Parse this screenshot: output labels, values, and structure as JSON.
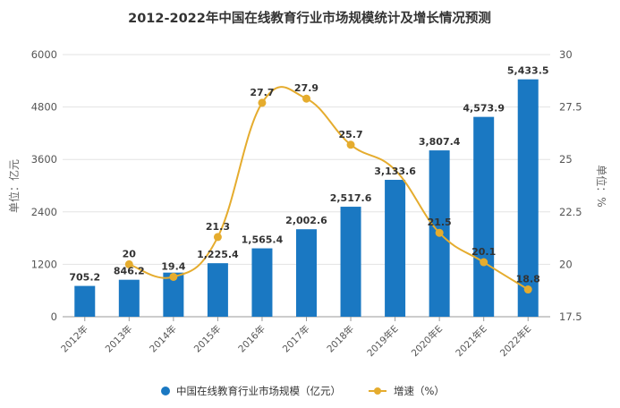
{
  "chart_data": {
    "type": "bar+line",
    "title": "2012-2022年中国在线教育行业市场规模统计及增长情况预测",
    "categories": [
      "2012年",
      "2013年",
      "2014年",
      "2015年",
      "2016年",
      "2017年",
      "2018年",
      "2019年E",
      "2020年E",
      "2021年E",
      "2022年E"
    ],
    "ylabel_left": "单位：亿元",
    "ylabel_right": "单位：%",
    "ylim_left": [
      0,
      6000
    ],
    "yticks_left": [
      "0",
      "1200",
      "2400",
      "3600",
      "4800",
      "6000"
    ],
    "ylim_right": [
      17.5,
      30
    ],
    "yticks_right": [
      "17.5",
      "20",
      "22.5",
      "25",
      "27.5",
      "30"
    ],
    "grid": true,
    "legend_position": "bottom",
    "series": [
      {
        "name": "中国在线教育行业市场规模（亿元）",
        "type": "bar",
        "axis": "left",
        "color": "#1a78c2",
        "values": [
          705.2,
          846.2,
          1010,
          1225.4,
          1565.4,
          2002.6,
          2517.6,
          3133.6,
          3807.4,
          4573.9,
          5433.5
        ],
        "labels": [
          "705.2",
          "846.2",
          "",
          "1,225.4",
          "1,565.4",
          "2,002.6",
          "2,517.6",
          "3,133.6",
          "3,807.4",
          "4,573.9",
          "5,433.5"
        ]
      },
      {
        "name": "增速（%）",
        "type": "line",
        "axis": "right",
        "color": "#e5ac2e",
        "values": [
          null,
          20,
          19.4,
          21.3,
          27.7,
          27.9,
          25.7,
          24.5,
          21.5,
          20.1,
          18.8
        ],
        "labels": [
          "",
          "20",
          "19.4",
          "21.3",
          "27.7",
          "27.9",
          "25.7",
          "",
          "21.5",
          "20.1",
          "18.8"
        ]
      }
    ]
  }
}
